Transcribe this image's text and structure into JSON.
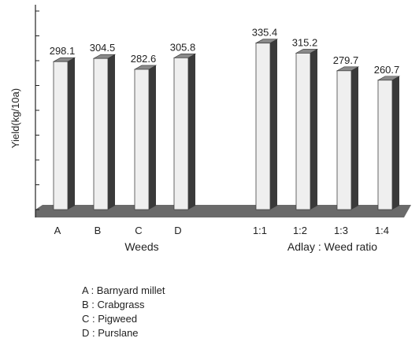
{
  "chart_data": {
    "type": "bar",
    "ylabel": "Yield(kg/10a)",
    "ylim": [
      0,
      400
    ],
    "y_ticks": [
      0,
      50,
      100,
      150,
      200,
      250,
      300,
      350,
      400
    ],
    "grid": false,
    "groups": [
      {
        "label": "Weeds",
        "categories": [
          "A",
          "B",
          "C",
          "D"
        ],
        "values": [
          298.1,
          304.5,
          282.6,
          305.8
        ],
        "value_labels": [
          "298.1",
          "304.5",
          "282.6",
          "305.8"
        ]
      },
      {
        "label": "Adlay : Weed ratio",
        "categories": [
          "1:1",
          "1:2",
          "1:3",
          "1:4"
        ],
        "values": [
          335.4,
          315.2,
          279.7,
          260.7
        ],
        "value_labels": [
          "335.4",
          "315.2",
          "279.7",
          "260.7"
        ]
      }
    ],
    "legend": [
      {
        "key": "A",
        "text": "A : Barnyard millet"
      },
      {
        "key": "B",
        "text": "B : Crabgrass"
      },
      {
        "key": "C",
        "text": "C : Pigweed"
      },
      {
        "key": "D",
        "text": "D : Purslane"
      }
    ],
    "colors": {
      "bar_face": "#efefef",
      "bar_side": "#3a3a3a",
      "bar_top": "#8a8a8a",
      "floor": "#6a6a6a"
    }
  }
}
